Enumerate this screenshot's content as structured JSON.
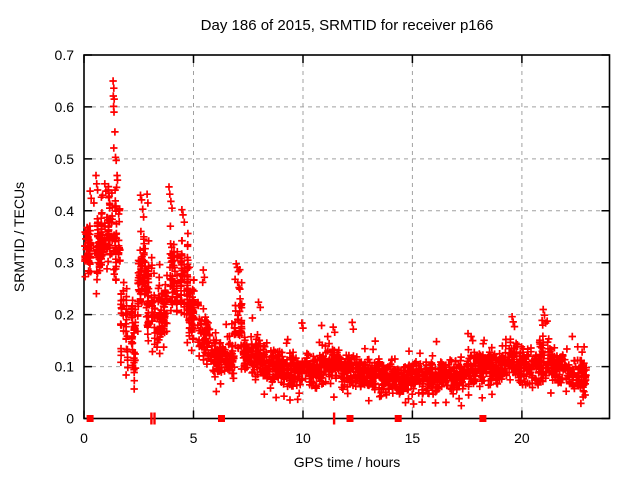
{
  "chart_data": {
    "type": "scatter",
    "title": "Day 186 of 2015, SRMTID for receiver p166",
    "xlabel": "GPS time / hours",
    "ylabel": "SRMTID / TECUs",
    "xlim": [
      0,
      24
    ],
    "ylim": [
      0,
      0.7
    ],
    "xticks": [
      0,
      5,
      10,
      15,
      20
    ],
    "yticks": [
      0,
      0.1,
      0.2,
      0.3,
      0.4,
      0.5,
      0.6,
      0.7
    ],
    "grid": true,
    "legend": "none",
    "marker": {
      "shape": "plus",
      "color": "#ff0000",
      "size": 7.4,
      "stroke_width": 1.7
    },
    "series": [
      {
        "name": "SRMTID",
        "density_bands": [
          [
            0.03,
            0.35,
            45,
            0.315,
            0.03,
            1
          ],
          [
            0.05,
            0.38,
            18,
            0.357,
            0.022,
            0
          ],
          [
            0.35,
            0.75,
            52,
            0.33,
            0.045,
            1
          ],
          [
            0.75,
            1.05,
            40,
            0.34,
            0.05,
            1
          ],
          [
            1.05,
            1.35,
            40,
            0.375,
            0.055,
            1
          ],
          [
            1.35,
            1.65,
            45,
            0.345,
            0.075,
            1
          ],
          [
            1.65,
            2.0,
            42,
            0.185,
            0.075,
            1
          ],
          [
            2.0,
            2.35,
            40,
            0.15,
            0.065,
            1
          ],
          [
            2.35,
            2.75,
            55,
            0.265,
            0.055,
            1
          ],
          [
            2.75,
            3.1,
            50,
            0.24,
            0.065,
            1
          ],
          [
            3.1,
            3.5,
            46,
            0.195,
            0.055,
            1
          ],
          [
            3.5,
            3.85,
            45,
            0.215,
            0.05,
            1
          ],
          [
            3.85,
            4.25,
            55,
            0.27,
            0.06,
            1
          ],
          [
            4.25,
            4.75,
            60,
            0.255,
            0.06,
            1
          ],
          [
            4.75,
            5.25,
            60,
            0.2,
            0.05,
            1
          ],
          [
            5.25,
            5.75,
            55,
            0.155,
            0.048,
            0
          ],
          [
            5.75,
            6.25,
            55,
            0.12,
            0.045,
            0
          ],
          [
            6.25,
            6.85,
            62,
            0.115,
            0.04,
            0
          ],
          [
            6.85,
            7.25,
            45,
            0.185,
            0.06,
            1
          ],
          [
            7.25,
            7.75,
            55,
            0.125,
            0.045,
            0
          ],
          [
            7.75,
            8.35,
            65,
            0.115,
            0.045,
            0
          ],
          [
            8.35,
            9.0,
            70,
            0.1,
            0.038,
            0
          ],
          [
            9.0,
            10.0,
            105,
            0.092,
            0.038,
            0
          ],
          [
            10.0,
            11.0,
            105,
            0.093,
            0.038,
            0
          ],
          [
            11.0,
            11.75,
            76,
            0.1,
            0.042,
            0
          ],
          [
            11.75,
            12.5,
            80,
            0.088,
            0.038,
            0
          ],
          [
            12.5,
            13.5,
            105,
            0.085,
            0.035,
            0
          ],
          [
            13.5,
            14.5,
            105,
            0.078,
            0.035,
            0
          ],
          [
            14.5,
            15.5,
            105,
            0.078,
            0.035,
            0
          ],
          [
            15.5,
            16.5,
            105,
            0.08,
            0.035,
            0
          ],
          [
            16.5,
            17.5,
            105,
            0.085,
            0.035,
            0
          ],
          [
            17.5,
            18.25,
            76,
            0.098,
            0.042,
            0
          ],
          [
            18.25,
            19.0,
            80,
            0.1,
            0.04,
            0
          ],
          [
            19.0,
            19.85,
            86,
            0.108,
            0.042,
            0
          ],
          [
            19.85,
            20.8,
            100,
            0.1,
            0.04,
            0
          ],
          [
            20.8,
            21.35,
            56,
            0.115,
            0.048,
            0
          ],
          [
            21.35,
            22.0,
            70,
            0.1,
            0.04,
            0
          ],
          [
            22.0,
            22.95,
            96,
            0.082,
            0.038,
            0
          ]
        ],
        "outliers": [
          [
            1.33,
            0.65
          ],
          [
            1.36,
            0.636
          ],
          [
            1.34,
            0.621
          ],
          [
            1.38,
            0.615
          ],
          [
            1.35,
            0.601
          ],
          [
            1.37,
            0.59
          ],
          [
            1.41,
            0.552
          ],
          [
            1.36,
            0.521
          ],
          [
            1.44,
            0.503
          ],
          [
            1.47,
            0.497
          ],
          [
            1.51,
            0.468
          ],
          [
            1.53,
            0.459
          ],
          [
            1.49,
            0.445
          ],
          [
            0.55,
            0.468
          ],
          [
            0.58,
            0.452
          ],
          [
            0.62,
            0.44
          ],
          [
            0.28,
            0.438
          ],
          [
            0.33,
            0.424
          ],
          [
            0.45,
            0.415
          ],
          [
            0.85,
            0.43
          ],
          [
            0.95,
            0.452
          ],
          [
            1.0,
            0.438
          ],
          [
            1.1,
            0.44
          ],
          [
            1.15,
            0.428
          ],
          [
            2.58,
            0.43
          ],
          [
            2.63,
            0.421
          ],
          [
            2.68,
            0.403
          ],
          [
            2.72,
            0.388
          ],
          [
            2.88,
            0.432
          ],
          [
            2.92,
            0.415
          ],
          [
            3.88,
            0.446
          ],
          [
            3.92,
            0.432
          ],
          [
            3.97,
            0.418
          ],
          [
            4.02,
            0.405
          ],
          [
            4.47,
            0.402
          ],
          [
            4.52,
            0.392
          ],
          [
            4.58,
            0.378
          ],
          [
            5.42,
            0.262
          ],
          [
            5.45,
            0.286
          ],
          [
            5.5,
            0.272
          ],
          [
            6.9,
            0.268
          ],
          [
            6.95,
            0.298
          ],
          [
            7.0,
            0.291
          ],
          [
            7.02,
            0.262
          ],
          [
            7.05,
            0.283
          ],
          [
            7.08,
            0.252
          ],
          [
            7.97,
            0.224
          ],
          [
            8.05,
            0.214
          ],
          [
            9.95,
            0.184
          ],
          [
            10.0,
            0.174
          ],
          [
            10.85,
            0.179
          ],
          [
            11.38,
            0.176
          ],
          [
            11.45,
            0.166
          ],
          [
            12.25,
            0.185
          ],
          [
            12.3,
            0.172
          ],
          [
            13.3,
            0.149
          ],
          [
            16.1,
            0.148
          ],
          [
            17.68,
            0.158
          ],
          [
            17.75,
            0.15
          ],
          [
            19.55,
            0.196
          ],
          [
            19.6,
            0.186
          ],
          [
            19.66,
            0.177
          ],
          [
            20.92,
            0.189
          ],
          [
            20.97,
            0.21
          ],
          [
            21.03,
            0.199
          ],
          [
            21.08,
            0.184
          ],
          [
            22.3,
            0.158
          ]
        ]
      }
    ],
    "axis_markers": {
      "description": "red markers drawn on the x-axis baseline",
      "color": "#ff0000",
      "squares_x": [
        0.28,
        6.28,
        12.15,
        14.35,
        18.22
      ],
      "ticks_x": [
        3.08,
        3.22,
        11.42
      ]
    }
  },
  "colors": {
    "background": "#ffffff",
    "border": "#000000",
    "grid": "#a0a0a0",
    "points": "#ff0000",
    "text": "#000000"
  }
}
